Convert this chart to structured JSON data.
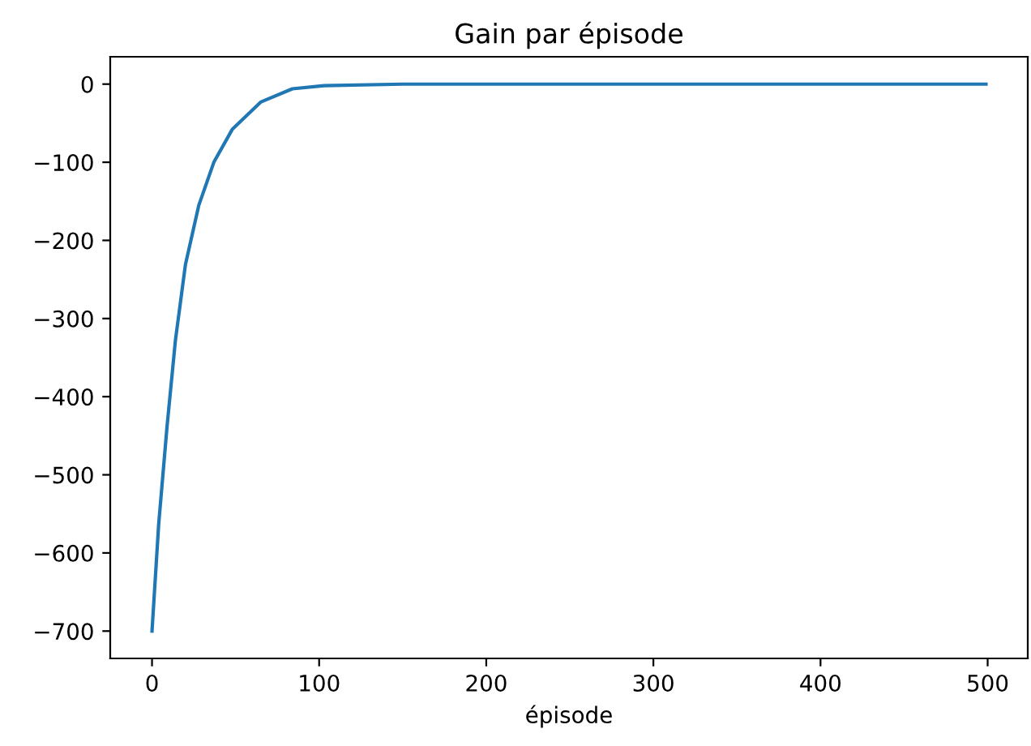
{
  "chart_data": {
    "type": "line",
    "title": "Gain par épisode",
    "xlabel": "épisode",
    "x": [
      0,
      4,
      9,
      14,
      20,
      28,
      37,
      48,
      65,
      84,
      103,
      150,
      200,
      300,
      400,
      499
    ],
    "series": [
      {
        "color": "#1f77b4",
        "values": [
          -700,
          -563,
          -438,
          -328,
          -231,
          -155,
          -100,
          -58,
          -23,
          -6,
          -2,
          0,
          0,
          0,
          0,
          0
        ]
      }
    ],
    "xlim": [
      -25,
      524
    ],
    "ylim": [
      -735,
      35
    ],
    "xticks": [
      0,
      100,
      200,
      300,
      400,
      500
    ],
    "yticks": [
      {
        "value": -700,
        "label": "−700"
      },
      {
        "value": -600,
        "label": "−600"
      },
      {
        "value": -500,
        "label": "−500"
      },
      {
        "value": -400,
        "label": "−400"
      },
      {
        "value": -300,
        "label": "−300"
      },
      {
        "value": -200,
        "label": "−200"
      },
      {
        "value": -100,
        "label": "−100"
      },
      0
    ],
    "grid": false,
    "legend": false
  }
}
